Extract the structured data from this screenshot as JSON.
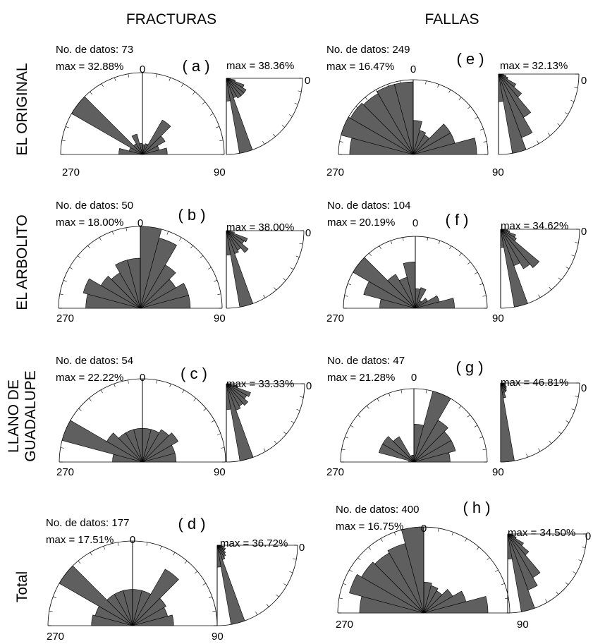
{
  "columns": [
    "FRACTURAS",
    "FALLAS"
  ],
  "rows": [
    "EL ORIGINAL",
    "EL ARBOLITO",
    "LLANO DE|GUADALUPE",
    "Total"
  ],
  "labels": {
    "no_datos": "No. de datos: ",
    "max_strike": "max = ",
    "max_dip": "max = ",
    "zero": "0",
    "ninety": "90",
    "two_seventy": "270"
  },
  "colors": {
    "sector_fill": "#5f5f5f",
    "sector_stroke": "#000000",
    "axis": "#000000"
  },
  "chart_data": [
    {
      "type": "rose",
      "panel": "a",
      "letter": "( a )",
      "column": "FRACTURAS",
      "row": "EL ORIGINAL",
      "n": "73",
      "max_strike": "32.88%",
      "max_dip": "38.36%",
      "strike_range": [
        270,
        450
      ],
      "bin_width_deg": 15,
      "strike_sectors": [
        {
          "from": 270,
          "to": 285,
          "value": 9.5
        },
        {
          "from": 285,
          "to": 300,
          "value": 5.5
        },
        {
          "from": 300,
          "to": 315,
          "value": 32.88
        },
        {
          "from": 315,
          "to": 330,
          "value": 5.0
        },
        {
          "from": 330,
          "to": 345,
          "value": 8.5
        },
        {
          "from": 345,
          "to": 360,
          "value": 4.5
        },
        {
          "from": 0,
          "to": 15,
          "value": 4.0
        },
        {
          "from": 15,
          "to": 30,
          "value": 4.5
        },
        {
          "from": 30,
          "to": 45,
          "value": 16.0
        },
        {
          "from": 45,
          "to": 60,
          "value": 10.5
        },
        {
          "from": 60,
          "to": 75,
          "value": 7.0
        },
        {
          "from": 75,
          "to": 90,
          "value": 10.0
        }
      ],
      "dip_range": [
        0,
        90
      ],
      "dip_sectors": [
        {
          "from": 0,
          "to": 10,
          "value": 2.0
        },
        {
          "from": 10,
          "to": 20,
          "value": 4.5
        },
        {
          "from": 20,
          "to": 30,
          "value": 9.5
        },
        {
          "from": 30,
          "to": 40,
          "value": 11.5
        },
        {
          "from": 40,
          "to": 50,
          "value": 11.5
        },
        {
          "from": 50,
          "to": 60,
          "value": 11.5
        },
        {
          "from": 60,
          "to": 70,
          "value": 10.5
        },
        {
          "from": 70,
          "to": 80,
          "value": 38.36
        },
        {
          "from": 80,
          "to": 90,
          "value": 11.5
        }
      ]
    },
    {
      "type": "rose",
      "panel": "b",
      "letter": "( b )",
      "column": "FRACTURAS",
      "row": "EL ARBOLITO",
      "n": "50",
      "max_strike": "18.00%",
      "max_dip": "38.00%",
      "strike_range": [
        270,
        450
      ],
      "bin_width_deg": 15,
      "strike_sectors": [
        {
          "from": 270,
          "to": 285,
          "value": 12.0
        },
        {
          "from": 285,
          "to": 300,
          "value": 13.0
        },
        {
          "from": 300,
          "to": 315,
          "value": 10.0
        },
        {
          "from": 315,
          "to": 330,
          "value": 9.0
        },
        {
          "from": 330,
          "to": 345,
          "value": 11.0
        },
        {
          "from": 345,
          "to": 360,
          "value": 11.0
        },
        {
          "from": 0,
          "to": 15,
          "value": 18.0
        },
        {
          "from": 15,
          "to": 30,
          "value": 16.0
        },
        {
          "from": 30,
          "to": 45,
          "value": 11.0
        },
        {
          "from": 45,
          "to": 60,
          "value": 9.0
        },
        {
          "from": 60,
          "to": 75,
          "value": 11.0
        },
        {
          "from": 75,
          "to": 90,
          "value": 11.0
        }
      ],
      "dip_range": [
        0,
        90
      ],
      "dip_sectors": [
        {
          "from": 0,
          "to": 10,
          "value": 2.0
        },
        {
          "from": 10,
          "to": 20,
          "value": 4.0
        },
        {
          "from": 20,
          "to": 30,
          "value": 11.0
        },
        {
          "from": 30,
          "to": 40,
          "value": 10.0
        },
        {
          "from": 40,
          "to": 50,
          "value": 14.0
        },
        {
          "from": 50,
          "to": 60,
          "value": 11.0
        },
        {
          "from": 60,
          "to": 70,
          "value": 12.0
        },
        {
          "from": 70,
          "to": 80,
          "value": 38.0
        },
        {
          "from": 80,
          "to": 90,
          "value": 12.0
        }
      ]
    },
    {
      "type": "rose",
      "panel": "c",
      "letter": "( c )",
      "column": "FRACTURAS",
      "row": "LLANO DE GUADALUPE",
      "n": "54",
      "max_strike": "22.22%",
      "max_dip": "33.33%",
      "strike_range": [
        270,
        450
      ],
      "bin_width_deg": 15,
      "strike_sectors": [
        {
          "from": 270,
          "to": 285,
          "value": 8.0
        },
        {
          "from": 285,
          "to": 300,
          "value": 22.22
        },
        {
          "from": 300,
          "to": 315,
          "value": 11.0
        },
        {
          "from": 315,
          "to": 330,
          "value": 9.0
        },
        {
          "from": 330,
          "to": 345,
          "value": 9.0
        },
        {
          "from": 345,
          "to": 360,
          "value": 9.0
        },
        {
          "from": 0,
          "to": 15,
          "value": 9.0
        },
        {
          "from": 15,
          "to": 30,
          "value": 9.0
        },
        {
          "from": 30,
          "to": 45,
          "value": 10.0
        },
        {
          "from": 45,
          "to": 60,
          "value": 11.0
        },
        {
          "from": 60,
          "to": 75,
          "value": 9.0
        },
        {
          "from": 75,
          "to": 90,
          "value": 9.0
        }
      ],
      "dip_range": [
        0,
        90
      ],
      "dip_sectors": [
        {
          "from": 0,
          "to": 10,
          "value": 2.0
        },
        {
          "from": 10,
          "to": 20,
          "value": 5.0
        },
        {
          "from": 20,
          "to": 30,
          "value": 11.0
        },
        {
          "from": 30,
          "to": 40,
          "value": 10.0
        },
        {
          "from": 40,
          "to": 50,
          "value": 12.0
        },
        {
          "from": 50,
          "to": 60,
          "value": 11.0
        },
        {
          "from": 60,
          "to": 70,
          "value": 12.0
        },
        {
          "from": 70,
          "to": 80,
          "value": 33.33
        },
        {
          "from": 80,
          "to": 90,
          "value": 11.0
        }
      ]
    },
    {
      "type": "rose",
      "panel": "d",
      "letter": "( d )",
      "column": "FRACTURAS",
      "row": "Total",
      "n": "177",
      "max_strike": "17.51%",
      "max_dip": "36.72%",
      "strike_range": [
        270,
        450
      ],
      "bin_width_deg": 15,
      "strike_sectors": [
        {
          "from": 270,
          "to": 285,
          "value": 8.5
        },
        {
          "from": 285,
          "to": 300,
          "value": 8.0
        },
        {
          "from": 300,
          "to": 315,
          "value": 17.51
        },
        {
          "from": 315,
          "to": 330,
          "value": 7.5
        },
        {
          "from": 330,
          "to": 345,
          "value": 7.5
        },
        {
          "from": 345,
          "to": 360,
          "value": 7.5
        },
        {
          "from": 0,
          "to": 15,
          "value": 7.5
        },
        {
          "from": 15,
          "to": 30,
          "value": 7.5
        },
        {
          "from": 30,
          "to": 45,
          "value": 13.5
        },
        {
          "from": 45,
          "to": 60,
          "value": 8.0
        },
        {
          "from": 60,
          "to": 75,
          "value": 7.5
        },
        {
          "from": 75,
          "to": 90,
          "value": 8.5
        }
      ],
      "dip_range": [
        0,
        90
      ],
      "dip_sectors": [
        {
          "from": 0,
          "to": 10,
          "value": 2.0
        },
        {
          "from": 10,
          "to": 20,
          "value": 3.0
        },
        {
          "from": 20,
          "to": 30,
          "value": 4.0
        },
        {
          "from": 30,
          "to": 40,
          "value": 4.0
        },
        {
          "from": 40,
          "to": 50,
          "value": 5.0
        },
        {
          "from": 50,
          "to": 60,
          "value": 6.0
        },
        {
          "from": 60,
          "to": 70,
          "value": 7.0
        },
        {
          "from": 70,
          "to": 80,
          "value": 36.72
        },
        {
          "from": 80,
          "to": 90,
          "value": 10.0
        }
      ]
    },
    {
      "type": "rose",
      "panel": "e",
      "letter": "( e )",
      "column": "FALLAS",
      "row": "EL ORIGINAL",
      "n": "249",
      "max_strike": "16.47%",
      "max_dip": "32.13%",
      "strike_range": [
        270,
        450
      ],
      "bin_width_deg": 15,
      "strike_sectors": [
        {
          "from": 270,
          "to": 285,
          "value": 14.0
        },
        {
          "from": 285,
          "to": 300,
          "value": 16.47
        },
        {
          "from": 300,
          "to": 315,
          "value": 16.0
        },
        {
          "from": 315,
          "to": 330,
          "value": 15.5
        },
        {
          "from": 330,
          "to": 345,
          "value": 16.0
        },
        {
          "from": 345,
          "to": 360,
          "value": 16.0
        },
        {
          "from": 0,
          "to": 15,
          "value": 7.5
        },
        {
          "from": 15,
          "to": 30,
          "value": 5.5
        },
        {
          "from": 30,
          "to": 45,
          "value": 5.0
        },
        {
          "from": 45,
          "to": 60,
          "value": 9.5
        },
        {
          "from": 60,
          "to": 75,
          "value": 9.5
        },
        {
          "from": 75,
          "to": 90,
          "value": 14.0
        }
      ],
      "dip_range": [
        0,
        90
      ],
      "dip_sectors": [
        {
          "from": 0,
          "to": 10,
          "value": 2.0
        },
        {
          "from": 10,
          "to": 20,
          "value": 3.0
        },
        {
          "from": 20,
          "to": 30,
          "value": 4.0
        },
        {
          "from": 30,
          "to": 40,
          "value": 8.0
        },
        {
          "from": 40,
          "to": 50,
          "value": 12.0
        },
        {
          "from": 50,
          "to": 60,
          "value": 20.0
        },
        {
          "from": 60,
          "to": 70,
          "value": 27.0
        },
        {
          "from": 70,
          "to": 80,
          "value": 32.13
        },
        {
          "from": 80,
          "to": 90,
          "value": 11.0
        }
      ]
    },
    {
      "type": "rose",
      "panel": "f",
      "letter": "( f )",
      "column": "FALLAS",
      "row": "EL ARBOLITO",
      "n": "104",
      "max_strike": "20.19%",
      "max_dip": "34.62%",
      "strike_range": [
        270,
        450
      ],
      "bin_width_deg": 15,
      "strike_sectors": [
        {
          "from": 270,
          "to": 285,
          "value": 10.0
        },
        {
          "from": 285,
          "to": 300,
          "value": 15.0
        },
        {
          "from": 300,
          "to": 315,
          "value": 20.19
        },
        {
          "from": 315,
          "to": 330,
          "value": 11.0
        },
        {
          "from": 330,
          "to": 345,
          "value": 9.0
        },
        {
          "from": 345,
          "to": 360,
          "value": 13.0
        },
        {
          "from": 0,
          "to": 15,
          "value": 5.5
        },
        {
          "from": 15,
          "to": 30,
          "value": 6.0
        },
        {
          "from": 30,
          "to": 45,
          "value": 2.5
        },
        {
          "from": 45,
          "to": 60,
          "value": 4.0
        },
        {
          "from": 60,
          "to": 75,
          "value": 7.0
        },
        {
          "from": 75,
          "to": 90,
          "value": 11.0
        }
      ],
      "dip_range": [
        0,
        90
      ],
      "dip_sectors": [
        {
          "from": 0,
          "to": 10,
          "value": 3.0
        },
        {
          "from": 10,
          "to": 20,
          "value": 4.0
        },
        {
          "from": 20,
          "to": 30,
          "value": 7.0
        },
        {
          "from": 30,
          "to": 40,
          "value": 8.0
        },
        {
          "from": 40,
          "to": 50,
          "value": 22.0
        },
        {
          "from": 50,
          "to": 60,
          "value": 20.0
        },
        {
          "from": 60,
          "to": 70,
          "value": 17.0
        },
        {
          "from": 70,
          "to": 80,
          "value": 34.62
        },
        {
          "from": 80,
          "to": 90,
          "value": 8.0
        }
      ]
    },
    {
      "type": "rose",
      "panel": "g",
      "letter": "( g )",
      "column": "FALLAS",
      "row": "LLANO DE GUADALUPE",
      "n": "47",
      "max_strike": "21.28%",
      "max_dip": "46.81%",
      "strike_range": [
        270,
        450
      ],
      "bin_width_deg": 15,
      "strike_sectors": [
        {
          "from": 270,
          "to": 285,
          "value": 1.5
        },
        {
          "from": 285,
          "to": 300,
          "value": 10.5
        },
        {
          "from": 300,
          "to": 315,
          "value": 10.5
        },
        {
          "from": 315,
          "to": 330,
          "value": 8.5
        },
        {
          "from": 330,
          "to": 345,
          "value": 2.0
        },
        {
          "from": 345,
          "to": 360,
          "value": 2.0
        },
        {
          "from": 0,
          "to": 15,
          "value": 11.0
        },
        {
          "from": 15,
          "to": 30,
          "value": 21.28
        },
        {
          "from": 30,
          "to": 45,
          "value": 14.0
        },
        {
          "from": 45,
          "to": 60,
          "value": 12.5
        },
        {
          "from": 60,
          "to": 75,
          "value": 12.5
        },
        {
          "from": 75,
          "to": 90,
          "value": 10.5
        }
      ],
      "dip_range": [
        0,
        90
      ],
      "dip_sectors": [
        {
          "from": 0,
          "to": 10,
          "value": 2.0
        },
        {
          "from": 10,
          "to": 20,
          "value": 2.5
        },
        {
          "from": 20,
          "to": 30,
          "value": 3.0
        },
        {
          "from": 30,
          "to": 40,
          "value": 4.0
        },
        {
          "from": 40,
          "to": 50,
          "value": 4.5
        },
        {
          "from": 50,
          "to": 60,
          "value": 5.5
        },
        {
          "from": 60,
          "to": 70,
          "value": 6.0
        },
        {
          "from": 70,
          "to": 80,
          "value": 9.0
        },
        {
          "from": 80,
          "to": 90,
          "value": 46.81
        }
      ]
    },
    {
      "type": "rose",
      "panel": "h",
      "letter": "( h )",
      "column": "FALLAS",
      "row": "Total",
      "n": "400",
      "max_strike": "16.75%",
      "max_dip": "34.50%",
      "strike_range": [
        270,
        450
      ],
      "bin_width_deg": 15,
      "strike_sectors": [
        {
          "from": 270,
          "to": 285,
          "value": 12.5
        },
        {
          "from": 285,
          "to": 300,
          "value": 15.0
        },
        {
          "from": 300,
          "to": 315,
          "value": 14.0
        },
        {
          "from": 315,
          "to": 330,
          "value": 13.5
        },
        {
          "from": 330,
          "to": 345,
          "value": 14.0
        },
        {
          "from": 345,
          "to": 360,
          "value": 16.75
        },
        {
          "from": 0,
          "to": 15,
          "value": 6.0
        },
        {
          "from": 15,
          "to": 30,
          "value": 5.5
        },
        {
          "from": 30,
          "to": 45,
          "value": 5.0
        },
        {
          "from": 45,
          "to": 60,
          "value": 6.5
        },
        {
          "from": 60,
          "to": 75,
          "value": 8.5
        },
        {
          "from": 75,
          "to": 90,
          "value": 12.5
        }
      ],
      "dip_range": [
        0,
        90
      ],
      "dip_sectors": [
        {
          "from": 0,
          "to": 10,
          "value": 2.0
        },
        {
          "from": 10,
          "to": 20,
          "value": 3.0
        },
        {
          "from": 20,
          "to": 30,
          "value": 4.0
        },
        {
          "from": 30,
          "to": 40,
          "value": 8.0
        },
        {
          "from": 40,
          "to": 50,
          "value": 12.0
        },
        {
          "from": 50,
          "to": 60,
          "value": 22.0
        },
        {
          "from": 60,
          "to": 70,
          "value": 26.0
        },
        {
          "from": 70,
          "to": 80,
          "value": 34.5
        },
        {
          "from": 80,
          "to": 90,
          "value": 11.0
        }
      ]
    }
  ]
}
